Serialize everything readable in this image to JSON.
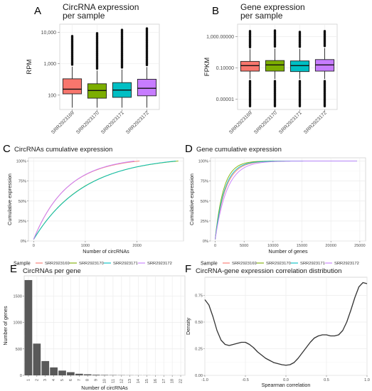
{
  "samples": [
    "SRR2923169",
    "SRR2923170",
    "SRR2923171",
    "SRR2923172"
  ],
  "colors": {
    "SRR2923169": "#F8766D",
    "SRR2923170": "#7CAE00",
    "SRR2923171": "#00BFC4",
    "SRR2923172": "#C77CFF"
  },
  "legend_title": "Sample",
  "chart_data": [
    {
      "panel": "A",
      "type": "box",
      "title": "CircRNA expression\nper sample",
      "ylabel": "RPM",
      "yscale": "log10",
      "ylim": [
        35,
        18000
      ],
      "yticks": [
        100,
        1000,
        10000
      ],
      "ytick_labels": [
        "100",
        "1,000",
        "10,000"
      ],
      "categories": [
        "SRR2923169",
        "SRR2923170",
        "SRR2923171",
        "SRR2923172"
      ],
      "boxes": [
        {
          "q1": 110,
          "median": 155,
          "q3": 330,
          "whislo": 40,
          "whishi": 800,
          "fliers_to": 8000
        },
        {
          "q1": 80,
          "median": 140,
          "q3": 230,
          "whislo": 40,
          "whishi": 600,
          "fliers_to": 9500
        },
        {
          "q1": 85,
          "median": 145,
          "q3": 250,
          "whislo": 40,
          "whishi": 650,
          "fliers_to": 12000
        },
        {
          "q1": 95,
          "median": 165,
          "q3": 320,
          "whislo": 40,
          "whishi": 780,
          "fliers_to": 13500
        }
      ]
    },
    {
      "panel": "B",
      "type": "box",
      "title": "Gene expression\nper sample",
      "ylabel": "FPKM",
      "yscale": "log10",
      "ylim": [
        5e-07,
        40000
      ],
      "yticks": [
        1e-05,
        0.1,
        1000
      ],
      "ytick_labels": [
        "0.00001",
        "0.10000",
        "1,000.00000"
      ],
      "categories": [
        "SRR2923169",
        "SRR2923170",
        "SRR2923171",
        "SRR2923172"
      ],
      "boxes": [
        {
          "q1": 0.04,
          "median": 0.2,
          "q3": 0.7,
          "whislo": 0.004,
          "whishi": 25,
          "fliers_lo_to": 1e-06,
          "fliers_to": 6000
        },
        {
          "q1": 0.04,
          "median": 0.25,
          "q3": 0.9,
          "whislo": 0.004,
          "whishi": 30,
          "fliers_lo_to": 1e-06,
          "fliers_to": 7000
        },
        {
          "q1": 0.035,
          "median": 0.2,
          "q3": 0.8,
          "whislo": 0.004,
          "whishi": 28,
          "fliers_lo_to": 1e-06,
          "fliers_to": 5500
        },
        {
          "q1": 0.04,
          "median": 0.25,
          "q3": 1.2,
          "whislo": 0.004,
          "whishi": 35,
          "fliers_lo_to": 1e-06,
          "fliers_to": 6000
        }
      ]
    },
    {
      "panel": "C",
      "type": "line",
      "title": "CircRNAs cumulative expression",
      "xlabel": "Number of circRNAs",
      "ylabel": "Cumulative expression",
      "xlim": [
        -100,
        2900
      ],
      "ylim": [
        0,
        1.04
      ],
      "xticks": [
        0,
        1000,
        2000
      ],
      "yticks": [
        0,
        0.25,
        0.5,
        0.75,
        1.0
      ],
      "ytick_labels": [
        "0%",
        "25%",
        "50%",
        "75%",
        "100%"
      ],
      "series": [
        {
          "sample": "SRR2923169",
          "n": 2050,
          "k": 3.2
        },
        {
          "sample": "SRR2923170",
          "n": 2800,
          "k": 2.9
        },
        {
          "sample": "SRR2923171",
          "n": 2750,
          "k": 2.8
        },
        {
          "sample": "SRR2923172",
          "n": 1950,
          "k": 3.0
        }
      ]
    },
    {
      "panel": "D",
      "type": "line",
      "title": "Gene cumulative expression",
      "xlabel": "Number of genes",
      "ylabel": "Cumulative expression",
      "xlim": [
        -800,
        26000
      ],
      "ylim": [
        0,
        1.04
      ],
      "xticks": [
        0,
        5000,
        10000,
        15000,
        20000,
        25000
      ],
      "yticks": [
        0,
        0.25,
        0.5,
        0.75,
        1.0
      ],
      "ytick_labels": [
        "0%",
        "25%",
        "50%",
        "75%",
        "100%"
      ],
      "series": [
        {
          "sample": "SRR2923169",
          "n": 24500,
          "k": 14
        },
        {
          "sample": "SRR2923170",
          "n": 24500,
          "k": 17
        },
        {
          "sample": "SRR2923171",
          "n": 24500,
          "k": 15
        },
        {
          "sample": "SRR2923172",
          "n": 24500,
          "k": 12
        }
      ]
    },
    {
      "panel": "E",
      "type": "bar",
      "title": "CircRNAs per gene",
      "xlabel": "Number of circRNAs",
      "ylabel": "Number of genes",
      "ylim": [
        0,
        1880
      ],
      "yticks": [
        0,
        500,
        1000,
        1500
      ],
      "categories": [
        "1",
        "2",
        "3",
        "4",
        "5",
        "6",
        "7",
        "8",
        "9",
        "10",
        "11",
        "12",
        "13",
        "14",
        "15",
        "16",
        "17",
        "18",
        "22"
      ],
      "values": [
        1800,
        600,
        270,
        150,
        90,
        60,
        30,
        20,
        12,
        8,
        6,
        4,
        3,
        2,
        2,
        1,
        1,
        1,
        1
      ],
      "color": "#595959"
    },
    {
      "panel": "F",
      "type": "line",
      "title": "CircRNA-gene expression correlation distribution",
      "xlabel": "Spearman correlation",
      "ylabel": "Density",
      "xlim": [
        -1.0,
        1.0
      ],
      "ylim": [
        0,
        0.92
      ],
      "xticks": [
        -1.0,
        -0.5,
        0.0,
        0.5,
        1.0
      ],
      "xtick_labels": [
        "-1.0",
        "-0.5",
        "0.0",
        "0.5",
        "1.0"
      ],
      "yticks": [
        0,
        0.25,
        0.5,
        0.75
      ],
      "ytick_labels": [
        "0.00",
        "0.25",
        "0.50",
        "0.75"
      ],
      "x": [
        -1.0,
        -0.95,
        -0.9,
        -0.85,
        -0.8,
        -0.75,
        -0.7,
        -0.65,
        -0.6,
        -0.55,
        -0.5,
        -0.45,
        -0.4,
        -0.35,
        -0.3,
        -0.25,
        -0.2,
        -0.15,
        -0.1,
        -0.05,
        0.0,
        0.05,
        0.1,
        0.15,
        0.2,
        0.25,
        0.3,
        0.35,
        0.4,
        0.45,
        0.5,
        0.55,
        0.6,
        0.65,
        0.7,
        0.75,
        0.8,
        0.85,
        0.9,
        0.95,
        1.0
      ],
      "y": [
        0.71,
        0.66,
        0.55,
        0.42,
        0.33,
        0.29,
        0.28,
        0.29,
        0.3,
        0.31,
        0.31,
        0.29,
        0.26,
        0.22,
        0.19,
        0.16,
        0.14,
        0.12,
        0.11,
        0.1,
        0.095,
        0.1,
        0.12,
        0.16,
        0.21,
        0.26,
        0.31,
        0.35,
        0.37,
        0.38,
        0.38,
        0.37,
        0.37,
        0.38,
        0.42,
        0.5,
        0.61,
        0.73,
        0.83,
        0.87,
        0.86
      ],
      "color": "#333333"
    }
  ]
}
